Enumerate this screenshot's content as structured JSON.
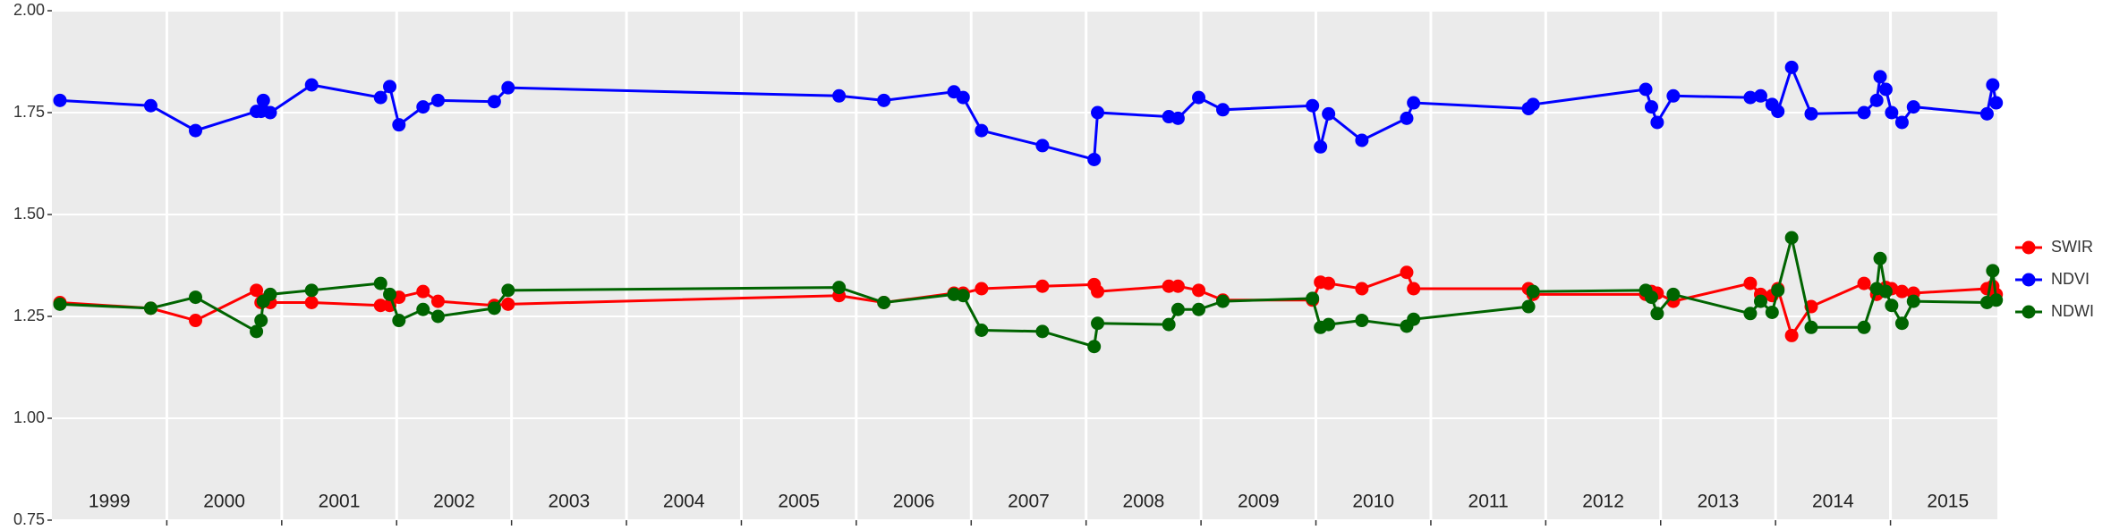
{
  "chart_data": {
    "type": "line",
    "x": [
      1999.07,
      1999.86,
      2000.25,
      2000.78,
      2000.82,
      2000.84,
      2000.9,
      2001.26,
      2001.86,
      2001.94,
      2002.02,
      2002.23,
      2002.36,
      2002.85,
      2002.97,
      2005.85,
      2006.24,
      2006.85,
      2006.93,
      2007.09,
      2007.62,
      2008.07,
      2008.1,
      2008.72,
      2008.8,
      2008.98,
      2009.19,
      2009.97,
      2010.04,
      2010.11,
      2010.4,
      2010.79,
      2010.85,
      2011.85,
      2011.89,
      2012.87,
      2012.92,
      2012.97,
      2013.11,
      2013.78,
      2013.87,
      2013.97,
      2014.02,
      2014.14,
      2014.31,
      2014.77,
      2014.88,
      2014.91,
      2014.96,
      2015.01,
      2015.1,
      2015.2,
      2015.84,
      2015.89,
      2015.92
    ],
    "series": [
      {
        "name": "SWIR",
        "color": "#ff0000",
        "values": [
          1.284,
          1.27,
          1.24,
          1.314,
          1.284,
          1.29,
          1.284,
          1.284,
          1.277,
          1.277,
          1.297,
          1.311,
          1.287,
          1.277,
          1.28,
          1.301,
          1.284,
          1.307,
          1.307,
          1.318,
          1.324,
          1.328,
          1.311,
          1.324,
          1.324,
          1.314,
          1.29,
          1.29,
          1.334,
          1.331,
          1.318,
          1.358,
          1.318,
          1.318,
          1.304,
          1.304,
          1.311,
          1.307,
          1.287,
          1.331,
          1.304,
          1.301,
          1.318,
          1.203,
          1.274,
          1.331,
          1.304,
          1.311,
          1.321,
          1.318,
          1.311,
          1.307,
          1.318,
          1.324,
          1.304
        ]
      },
      {
        "name": "NDVI",
        "color": "#0000ff",
        "values": [
          1.78,
          1.767,
          1.706,
          1.753,
          1.753,
          1.78,
          1.75,
          1.818,
          1.787,
          1.814,
          1.72,
          1.764,
          1.78,
          1.777,
          1.811,
          1.791,
          1.78,
          1.801,
          1.787,
          1.706,
          1.669,
          1.635,
          1.75,
          1.74,
          1.736,
          1.787,
          1.757,
          1.767,
          1.666,
          1.747,
          1.682,
          1.736,
          1.774,
          1.76,
          1.77,
          1.807,
          1.764,
          1.726,
          1.791,
          1.787,
          1.791,
          1.77,
          1.753,
          1.861,
          1.747,
          1.75,
          1.78,
          1.838,
          1.807,
          1.75,
          1.726,
          1.764,
          1.747,
          1.818,
          1.774
        ]
      },
      {
        "name": "NDWI",
        "color": "#006400",
        "values": [
          1.28,
          1.27,
          1.297,
          1.213,
          1.24,
          1.287,
          1.304,
          1.314,
          1.331,
          1.304,
          1.24,
          1.267,
          1.25,
          1.27,
          1.314,
          1.321,
          1.284,
          1.304,
          1.301,
          1.216,
          1.213,
          1.176,
          1.233,
          1.23,
          1.267,
          1.267,
          1.287,
          1.294,
          1.223,
          1.23,
          1.24,
          1.226,
          1.243,
          1.274,
          1.311,
          1.314,
          1.297,
          1.257,
          1.304,
          1.257,
          1.287,
          1.26,
          1.314,
          1.443,
          1.223,
          1.223,
          1.318,
          1.392,
          1.311,
          1.277,
          1.233,
          1.287,
          1.284,
          1.362,
          1.29
        ]
      }
    ],
    "xlim": [
      1999,
      2015.93
    ],
    "xticks": [
      2000,
      2001,
      2002,
      2003,
      2004,
      2005,
      2006,
      2007,
      2008,
      2009,
      2010,
      2011,
      2012,
      2013,
      2014,
      2015
    ],
    "ylim": [
      0.75,
      2.0
    ],
    "yticks": [
      {
        "value": 0.75,
        "label": "0.75"
      },
      {
        "value": 1,
        "label": "1.00"
      },
      {
        "value": 1.25,
        "label": "1.25"
      },
      {
        "value": 1.5,
        "label": "1.50"
      },
      {
        "value": 1.75,
        "label": "1.75"
      },
      {
        "value": 2,
        "label": "2.00"
      }
    ],
    "year_labels": [
      {
        "text": "1999",
        "x": 1999.5
      },
      {
        "text": "2000",
        "x": 2000.5
      },
      {
        "text": "2001",
        "x": 2001.5
      },
      {
        "text": "2002",
        "x": 2002.5
      },
      {
        "text": "2003",
        "x": 2003.5
      },
      {
        "text": "2004",
        "x": 2004.5
      },
      {
        "text": "2005",
        "x": 2005.5
      },
      {
        "text": "2006",
        "x": 2006.5
      },
      {
        "text": "2007",
        "x": 2007.5
      },
      {
        "text": "2008",
        "x": 2008.5
      },
      {
        "text": "2009",
        "x": 2009.5
      },
      {
        "text": "2010",
        "x": 2010.5
      },
      {
        "text": "2011",
        "x": 2011.5
      },
      {
        "text": "2012",
        "x": 2012.5
      },
      {
        "text": "2013",
        "x": 2013.5
      },
      {
        "text": "2014",
        "x": 2014.5
      },
      {
        "text": "2015",
        "x": 2015.5
      }
    ],
    "grid": true
  }
}
